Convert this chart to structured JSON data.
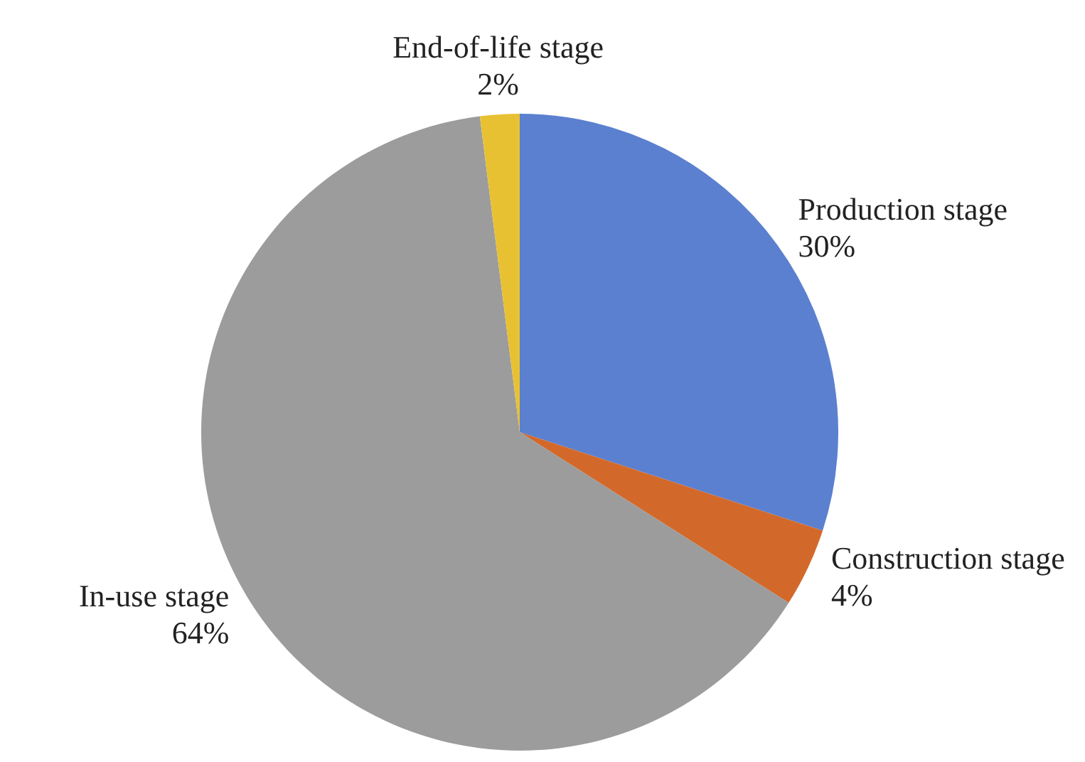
{
  "chart_data": {
    "type": "pie",
    "categories": [
      "Production stage",
      "Construction stage",
      "In-use stage",
      "End-of-life stage"
    ],
    "values": [
      30,
      4,
      64,
      2
    ],
    "value_labels": [
      "30%",
      "4%",
      "64%",
      "2%"
    ],
    "colors": [
      "#5b80d0",
      "#d2692b",
      "#9c9c9c",
      "#e8c133"
    ]
  }
}
